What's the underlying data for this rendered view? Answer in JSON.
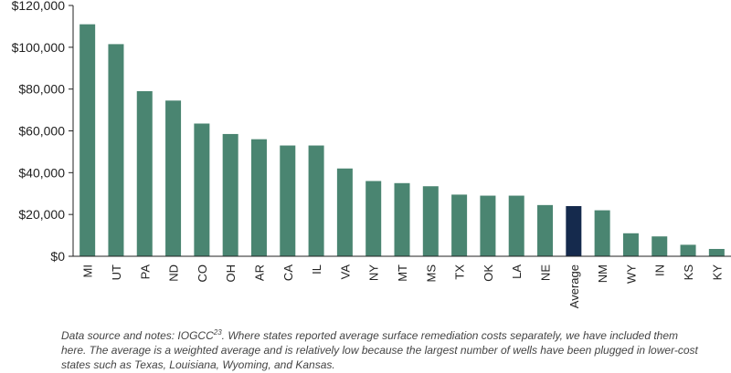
{
  "chart_data": {
    "type": "bar",
    "categories": [
      "MI",
      "UT",
      "PA",
      "ND",
      "CO",
      "OH",
      "AR",
      "CA",
      "IL",
      "VA",
      "NY",
      "MT",
      "MS",
      "TX",
      "OK",
      "LA",
      "NE",
      "Average",
      "NM",
      "WY",
      "IN",
      "KS",
      "KY"
    ],
    "values": [
      111000,
      101500,
      79000,
      74500,
      63500,
      58500,
      56000,
      53000,
      53000,
      42000,
      36000,
      35000,
      33500,
      29500,
      29000,
      29000,
      24500,
      24000,
      22000,
      11000,
      9500,
      5500,
      3500
    ],
    "highlight_category": "Average",
    "ylim": [
      0,
      120000
    ],
    "yticks": [
      "$0",
      "$20,000",
      "$40,000",
      "$60,000",
      "$80,000",
      "$100,000",
      "$120,000"
    ],
    "ytick_values": [
      0,
      20000,
      40000,
      60000,
      80000,
      100000,
      120000
    ],
    "grid": false,
    "colors": {
      "bar": "#4a8571",
      "highlight": "#152a4d",
      "axis": "#222222"
    }
  },
  "note": {
    "prefix": "Data source and notes: IOGCC",
    "superscript": "23",
    "text": ". Where states reported average surface remediation costs separately, we have included them here. The average is a weighted average and is relatively low because the largest number of wells have been plugged in lower-cost states such as Texas, Louisiana, Wyoming, and Kansas."
  }
}
